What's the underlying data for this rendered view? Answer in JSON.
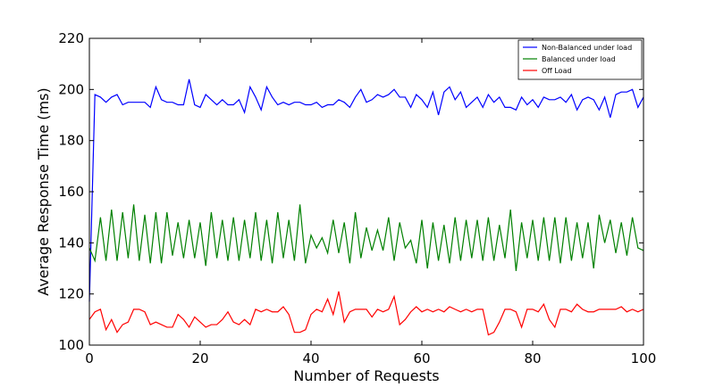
{
  "chart_data": {
    "type": "line",
    "title": "",
    "xlabel": "Number of Requests",
    "ylabel": "Average Response Time (ms)",
    "xlim": [
      0,
      100
    ],
    "ylim": [
      100,
      220
    ],
    "x_ticks": [
      "0",
      "20",
      "40",
      "60",
      "80",
      "100"
    ],
    "y_ticks": [
      "100",
      "120",
      "140",
      "160",
      "180",
      "200",
      "220"
    ],
    "grid": false,
    "legend_position": "top-right",
    "series": [
      {
        "name": "Non-Balanced under load",
        "color": "#0000ff",
        "values": [
          117,
          198,
          197,
          195,
          197,
          198,
          194,
          195,
          195,
          195,
          195,
          193,
          201,
          196,
          195,
          195,
          194,
          194,
          204,
          194,
          193,
          198,
          196,
          194,
          196,
          194,
          194,
          196,
          191,
          201,
          197,
          192,
          201,
          197,
          194,
          195,
          194,
          195,
          195,
          194,
          194,
          195,
          193,
          194,
          194,
          196,
          195,
          193,
          197,
          200,
          195,
          196,
          198,
          197,
          198,
          200,
          197,
          197,
          193,
          198,
          196,
          193,
          199,
          190,
          199,
          201,
          196,
          199,
          193,
          195,
          197,
          193,
          198,
          195,
          197,
          193,
          193,
          192,
          197,
          194,
          196,
          193,
          197,
          196,
          196,
          197,
          195,
          198,
          192,
          196,
          197,
          196,
          192,
          197,
          189,
          198,
          199,
          199,
          200,
          193,
          197
        ]
      },
      {
        "name": "Balanced under load",
        "color": "#008000",
        "values": [
          138,
          133,
          150,
          133,
          153,
          133,
          152,
          134,
          155,
          133,
          151,
          132,
          152,
          132,
          152,
          135,
          148,
          134,
          149,
          134,
          148,
          131,
          152,
          134,
          149,
          133,
          150,
          133,
          149,
          134,
          152,
          133,
          149,
          132,
          152,
          134,
          149,
          133,
          155,
          132,
          143,
          138,
          142,
          136,
          149,
          136,
          148,
          132,
          152,
          134,
          146,
          137,
          145,
          137,
          150,
          133,
          148,
          138,
          141,
          132,
          149,
          130,
          148,
          133,
          147,
          132,
          150,
          133,
          149,
          134,
          149,
          133,
          150,
          133,
          147,
          134,
          153,
          129,
          148,
          134,
          149,
          133,
          150,
          133,
          150,
          132,
          150,
          133,
          148,
          134,
          148,
          130,
          151,
          140,
          149,
          136,
          148,
          135,
          150,
          138,
          137
        ]
      },
      {
        "name": "Off Load",
        "color": "#ff0000",
        "values": [
          110,
          113,
          114,
          106,
          110,
          105,
          108,
          109,
          114,
          114,
          113,
          108,
          109,
          108,
          107,
          107,
          112,
          110,
          107,
          111,
          109,
          107,
          108,
          108,
          110,
          113,
          109,
          108,
          110,
          108,
          114,
          113,
          114,
          113,
          113,
          115,
          112,
          105,
          105,
          106,
          112,
          114,
          113,
          118,
          112,
          121,
          109,
          113,
          114,
          114,
          114,
          111,
          114,
          113,
          114,
          119,
          108,
          110,
          113,
          115,
          113,
          114,
          113,
          114,
          113,
          115,
          114,
          113,
          114,
          113,
          114,
          114,
          104,
          105,
          109,
          114,
          114,
          113,
          107,
          114,
          114,
          113,
          116,
          110,
          107,
          114,
          114,
          113,
          116,
          114,
          113,
          113,
          114,
          114,
          114,
          114,
          115,
          113,
          114,
          113,
          114
        ]
      }
    ]
  }
}
